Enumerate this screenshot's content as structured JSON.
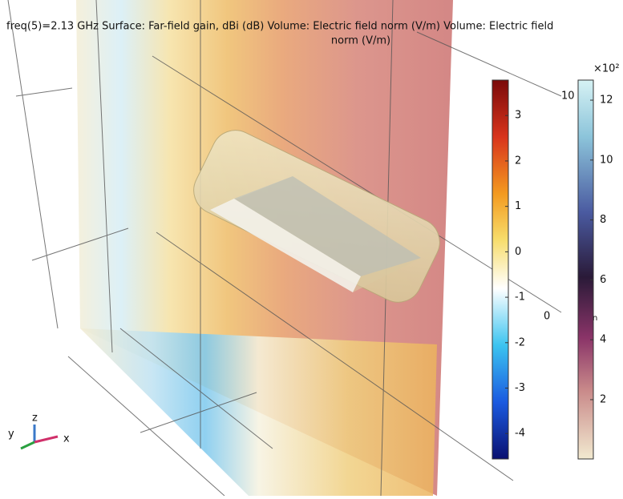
{
  "header": {
    "lines": [
      "freq(5)=2.13 GHz Surface: Far-field gain, dBi (dB)  Volume: Electric field norm (V/m)  Volume: Electric field",
      "norm (V/m)"
    ]
  },
  "colorbars": [
    {
      "range": [
        -4.56,
        3.78
      ],
      "ticks": [
        -4,
        -3,
        -2,
        -1,
        0,
        1,
        2,
        3
      ]
    },
    {
      "multiplier": "×10²",
      "range": [
        0.02,
        12.67
      ],
      "ticks": [
        2,
        4,
        6,
        8,
        10,
        12
      ]
    }
  ],
  "scene_labels": [
    "10",
    "0",
    "n"
  ],
  "triad": {
    "x": "x",
    "y": "y",
    "z": "z"
  }
}
